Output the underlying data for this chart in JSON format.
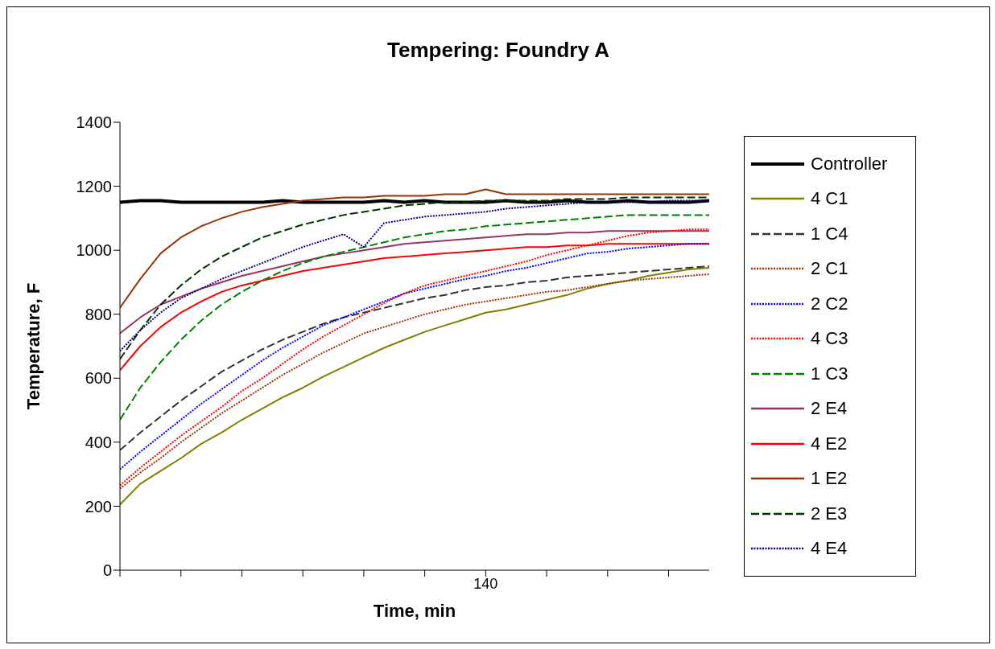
{
  "chart_data": {
    "type": "line",
    "title": "Tempering: Foundry A",
    "xlabel": "Time, min",
    "ylabel": "Temperature, F",
    "categories": [
      null,
      null,
      null,
      null,
      null,
      null,
      null,
      null,
      null,
      null,
      null,
      null,
      null,
      null,
      null,
      null,
      null,
      null,
      "140",
      null,
      null,
      null,
      null,
      null,
      null,
      null,
      null,
      null,
      null,
      null
    ],
    "ylim": [
      0,
      1400
    ],
    "yticks": [
      0,
      200,
      400,
      600,
      800,
      1000,
      1200,
      1400
    ],
    "grid": false,
    "legend": "right",
    "marker": "none",
    "series": [
      {
        "name": "Controller",
        "color": "#000000",
        "line_style": "solid",
        "values": [
          1150,
          1155,
          1155,
          1150,
          1150,
          1150,
          1150,
          1150,
          1155,
          1150,
          1150,
          1150,
          1150,
          1155,
          1150,
          1155,
          1150,
          1150,
          1150,
          1155,
          1150,
          1150,
          1155,
          1150,
          1150,
          1155,
          1150,
          1150,
          1150,
          1155
        ]
      },
      {
        "name": "4 C1",
        "color": "#808000",
        "line_style": "solid",
        "values": [
          205,
          270,
          310,
          350,
          395,
          430,
          470,
          505,
          540,
          570,
          605,
          635,
          665,
          695,
          720,
          745,
          765,
          785,
          805,
          815,
          830,
          845,
          860,
          880,
          895,
          905,
          920,
          930,
          940,
          945
        ]
      },
      {
        "name": "1 C4",
        "color": "#333333",
        "line_style": "dashed",
        "values": [
          375,
          430,
          480,
          530,
          575,
          620,
          655,
          690,
          720,
          745,
          770,
          790,
          805,
          820,
          835,
          850,
          860,
          875,
          885,
          890,
          900,
          905,
          915,
          920,
          925,
          930,
          935,
          940,
          945,
          950
        ]
      },
      {
        "name": "2 C1",
        "color": "#993300",
        "line_style": "dotted",
        "values": [
          255,
          305,
          350,
          400,
          445,
          490,
          530,
          570,
          610,
          645,
          680,
          710,
          740,
          760,
          780,
          800,
          815,
          830,
          840,
          850,
          860,
          870,
          875,
          885,
          895,
          905,
          910,
          915,
          920,
          925
        ]
      },
      {
        "name": "2 C2",
        "color": "#0000ff",
        "line_style": "dotted",
        "values": [
          315,
          370,
          420,
          470,
          520,
          565,
          610,
          655,
          695,
          730,
          765,
          790,
          815,
          840,
          865,
          880,
          895,
          910,
          920,
          935,
          945,
          960,
          975,
          990,
          995,
          1005,
          1010,
          1015,
          1020,
          1020
        ]
      },
      {
        "name": "4 C3",
        "color": "#ff0000",
        "line_style": "dotted",
        "values": [
          265,
          320,
          370,
          420,
          465,
          510,
          560,
          600,
          645,
          690,
          730,
          765,
          800,
          835,
          865,
          890,
          905,
          920,
          935,
          950,
          965,
          985,
          1000,
          1015,
          1030,
          1045,
          1055,
          1060,
          1065,
          1065
        ]
      },
      {
        "name": "1 C3",
        "color": "#008000",
        "line_style": "dashed",
        "values": [
          470,
          570,
          650,
          720,
          780,
          830,
          870,
          905,
          935,
          960,
          980,
          995,
          1010,
          1025,
          1040,
          1050,
          1060,
          1065,
          1075,
          1080,
          1085,
          1090,
          1095,
          1100,
          1105,
          1110,
          1110,
          1110,
          1110,
          1110
        ]
      },
      {
        "name": "2 E4",
        "color": "#993366",
        "line_style": "solid",
        "values": [
          740,
          790,
          830,
          855,
          880,
          900,
          920,
          935,
          950,
          965,
          980,
          990,
          1000,
          1010,
          1020,
          1025,
          1030,
          1035,
          1040,
          1045,
          1050,
          1050,
          1055,
          1055,
          1060,
          1060,
          1060,
          1060,
          1060,
          1060
        ]
      },
      {
        "name": "4 E2",
        "color": "#ff0000",
        "line_style": "solid",
        "values": [
          625,
          700,
          760,
          805,
          840,
          870,
          890,
          905,
          920,
          935,
          945,
          955,
          965,
          975,
          980,
          985,
          990,
          995,
          1000,
          1005,
          1010,
          1010,
          1015,
          1015,
          1020,
          1020,
          1020,
          1020,
          1020,
          1020
        ]
      },
      {
        "name": "1 E2",
        "color": "#993300",
        "line_style": "solid",
        "values": [
          820,
          910,
          990,
          1040,
          1075,
          1100,
          1120,
          1135,
          1145,
          1155,
          1160,
          1165,
          1165,
          1170,
          1170,
          1170,
          1175,
          1175,
          1190,
          1175,
          1175,
          1175,
          1175,
          1175,
          1175,
          1175,
          1175,
          1175,
          1175,
          1175
        ]
      },
      {
        "name": "2 E3",
        "color": "#003300",
        "line_style": "dashed",
        "values": [
          660,
          750,
          830,
          890,
          940,
          980,
          1010,
          1040,
          1060,
          1080,
          1095,
          1110,
          1120,
          1130,
          1140,
          1145,
          1150,
          1150,
          1155,
          1155,
          1155,
          1155,
          1160,
          1160,
          1160,
          1165,
          1165,
          1165,
          1165,
          1165
        ]
      },
      {
        "name": "4 E4",
        "color": "#000080",
        "line_style": "dotted",
        "values": [
          685,
          750,
          805,
          850,
          880,
          910,
          935,
          960,
          985,
          1010,
          1030,
          1050,
          1010,
          1085,
          1095,
          1105,
          1110,
          1115,
          1120,
          1130,
          1135,
          1140,
          1145,
          1150,
          1150,
          1150,
          1150,
          1155,
          1155,
          1155
        ]
      }
    ]
  }
}
